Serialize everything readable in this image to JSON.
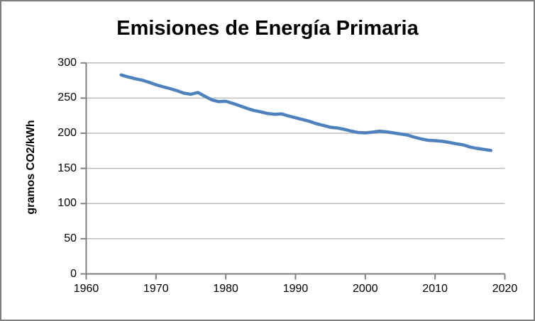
{
  "chart": {
    "colors": {
      "line": "#4F81BD",
      "gridline": "#BDBDBD",
      "axis": "#808080",
      "text": "#000000",
      "background": "#FFFFFF",
      "frame_border": "#7F7F7F"
    }
  },
  "chart_data": {
    "type": "line",
    "title": "Emisiones de Energía Primaria",
    "xlabel": "",
    "ylabel": "gramos CO2/kWh",
    "legend": "none",
    "grid": "horizontal",
    "xlim": [
      1960,
      2020
    ],
    "ylim": [
      0,
      300
    ],
    "x_ticks": [
      1960,
      1970,
      1980,
      1990,
      2000,
      2010,
      2020
    ],
    "y_ticks": [
      0,
      50,
      100,
      150,
      200,
      250,
      300
    ],
    "x": [
      1965,
      1966,
      1967,
      1968,
      1969,
      1970,
      1971,
      1972,
      1973,
      1974,
      1975,
      1976,
      1977,
      1978,
      1979,
      1980,
      1981,
      1982,
      1983,
      1984,
      1985,
      1986,
      1987,
      1988,
      1989,
      1990,
      1991,
      1992,
      1993,
      1994,
      1995,
      1996,
      1997,
      1998,
      1999,
      2000,
      2001,
      2002,
      2003,
      2004,
      2005,
      2006,
      2007,
      2008,
      2009,
      2010,
      2011,
      2012,
      2013,
      2014,
      2015,
      2016,
      2017,
      2018
    ],
    "values": [
      283,
      280,
      277.5,
      275.5,
      272.5,
      269,
      266,
      263.5,
      260.5,
      257,
      255.5,
      258,
      252.5,
      247.5,
      245,
      245.5,
      242.5,
      239,
      235.5,
      232.5,
      230.5,
      228,
      227,
      227.5,
      224.5,
      222,
      219.5,
      217,
      213.5,
      211,
      208.5,
      207.5,
      205.5,
      203,
      201,
      200.5,
      201.5,
      203,
      202,
      200.5,
      199,
      197.5,
      194.5,
      192,
      190,
      189.5,
      188.5,
      187,
      185,
      183.5,
      180.5,
      178.5,
      177,
      175.5
    ]
  }
}
